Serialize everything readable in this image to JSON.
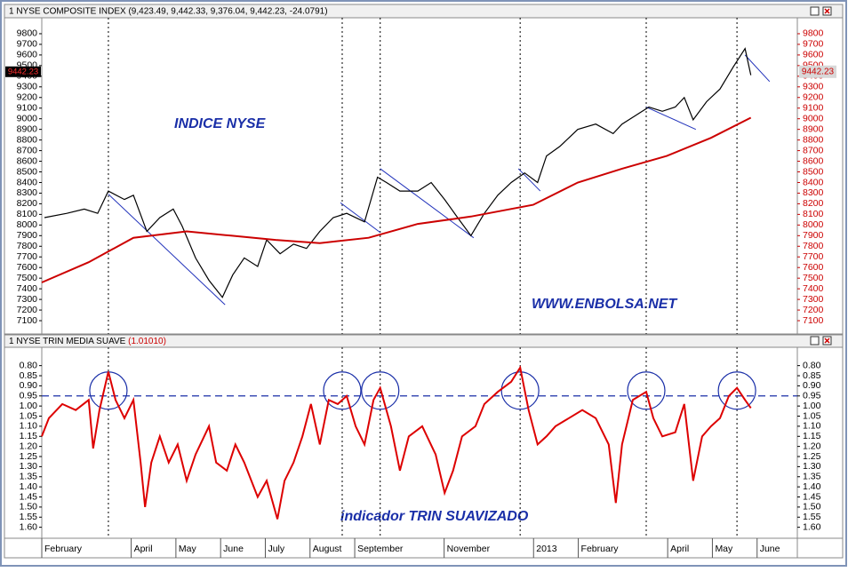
{
  "chart_data": [
    {
      "type": "line",
      "title": "1 NYSE COMPOSITE INDEX (9,423.49, 9,442.33, 9,376.04, 9,442.23, -24.0791)",
      "annotations": [
        "INDICE NYSE",
        "WWW.ENBOLSA.NET"
      ],
      "xlim": [
        0,
        16.9
      ],
      "ylim": [
        7000,
        9900
      ],
      "yticks": [
        7100,
        7200,
        7300,
        7400,
        7500,
        7600,
        7700,
        7800,
        7900,
        8000,
        8100,
        8200,
        8300,
        8400,
        8500,
        8600,
        8700,
        8800,
        8900,
        9000,
        9100,
        9200,
        9300,
        9400,
        9500,
        9600,
        9700,
        9800
      ],
      "last_value": 9442.23,
      "markers": [
        1.49,
        6.72,
        7.57,
        10.7,
        13.52,
        15.55
      ],
      "series": [
        {
          "color": "#000000",
          "x": [
            0.06,
            0.56,
            0.95,
            1.25,
            1.49,
            1.85,
            2.05,
            2.35,
            2.64,
            2.94,
            3.14,
            3.44,
            3.74,
            4.04,
            4.27,
            4.53,
            4.83,
            5.03,
            5.33,
            5.63,
            5.92,
            6.22,
            6.52,
            6.82,
            7.22,
            7.51,
            7.71,
            8.01,
            8.41,
            8.71,
            9.01,
            9.3,
            9.6,
            9.9,
            10.2,
            10.5,
            10.8,
            11.09,
            11.29,
            11.59,
            11.99,
            12.39,
            12.78,
            12.98,
            13.28,
            13.58,
            13.88,
            14.17,
            14.37,
            14.57,
            14.87,
            15.17,
            15.47,
            15.73,
            15.86
          ],
          "values": [
            8070,
            8110,
            8150,
            8110,
            8320,
            8240,
            8280,
            7940,
            8070,
            8150,
            7990,
            7690,
            7480,
            7320,
            7530,
            7690,
            7610,
            7860,
            7730,
            7820,
            7780,
            7940,
            8070,
            8110,
            8030,
            8450,
            8400,
            8320,
            8320,
            8400,
            8240,
            8070,
            7900,
            8110,
            8280,
            8400,
            8490,
            8400,
            8650,
            8740,
            8900,
            8950,
            8860,
            8950,
            9030,
            9110,
            9070,
            9110,
            9200,
            8990,
            9160,
            9280,
            9490,
            9660,
            9410
          ]
        },
        {
          "color": "#cc0000",
          "x": [
            0,
            1.05,
            2.05,
            3.24,
            4.23,
            5.23,
            6.22,
            7.31,
            8.41,
            9.6,
            10.99,
            11.99,
            12.98,
            13.98,
            14.97,
            15.86
          ],
          "values": [
            7460,
            7650,
            7880,
            7940,
            7900,
            7860,
            7830,
            7880,
            8010,
            8080,
            8190,
            8400,
            8530,
            8650,
            8820,
            9010
          ]
        }
      ],
      "trendlines": [
        {
          "x": [
            1.49,
            4.1
          ],
          "y": [
            8290,
            7250
          ]
        },
        {
          "x": [
            6.68,
            7.57
          ],
          "y": [
            8210,
            7930
          ]
        },
        {
          "x": [
            7.57,
            9.66
          ],
          "y": [
            8530,
            7880
          ]
        },
        {
          "x": [
            10.66,
            11.15
          ],
          "y": [
            8530,
            8320
          ]
        },
        {
          "x": [
            13.52,
            14.63
          ],
          "y": [
            9110,
            8900
          ]
        },
        {
          "x": [
            15.73,
            16.28
          ],
          "y": [
            9600,
            9350
          ]
        }
      ]
    },
    {
      "type": "line",
      "title": "1 NYSE TRIN MEDIA SUAVE",
      "title_value": "(1.01010)",
      "annotations": [
        "indicador TRIN SUAVIZADO"
      ],
      "xlim": [
        0,
        16.9
      ],
      "ylim": [
        1.65,
        0.74
      ],
      "yticks": [
        {
          "value": 0.8,
          "label": "0.80"
        },
        {
          "value": 0.85,
          "label": "0.85"
        },
        {
          "value": 0.9,
          "label": "0.90"
        },
        {
          "value": 0.95,
          "label": "0.95"
        },
        {
          "value": 1.0,
          "label": "1.00"
        },
        {
          "value": 1.05,
          "label": "1.05"
        },
        {
          "value": 1.1,
          "label": "1.10"
        },
        {
          "value": 1.15,
          "label": "1.15"
        },
        {
          "value": 1.2,
          "label": "1.20"
        },
        {
          "value": 1.25,
          "label": "1.25"
        },
        {
          "value": 1.3,
          "label": "1.30"
        },
        {
          "value": 1.35,
          "label": "1.35"
        },
        {
          "value": 1.4,
          "label": "1.40"
        },
        {
          "value": 1.45,
          "label": "1.45"
        },
        {
          "value": 1.5,
          "label": "1.50"
        },
        {
          "value": 1.55,
          "label": "1.55"
        },
        {
          "value": 1.6,
          "label": "1.60"
        }
      ],
      "xticks": [
        {
          "value": 0,
          "label": "February"
        },
        {
          "value": 2,
          "label": "April"
        },
        {
          "value": 3,
          "label": "May"
        },
        {
          "value": 4,
          "label": "June"
        },
        {
          "value": 5,
          "label": "July"
        },
        {
          "value": 6,
          "label": "August"
        },
        {
          "value": 7,
          "label": "September"
        },
        {
          "value": 9,
          "label": "November"
        },
        {
          "value": 11,
          "label": "2013"
        },
        {
          "value": 12,
          "label": "February"
        },
        {
          "value": 14,
          "label": "April"
        },
        {
          "value": 15,
          "label": "May"
        },
        {
          "value": 16,
          "label": "June"
        }
      ],
      "hline": 0.95,
      "series": [
        {
          "color": "#dd0000",
          "x": [
            0,
            0.16,
            0.46,
            0.76,
            1.05,
            1.15,
            1.29,
            1.49,
            1.65,
            1.85,
            2.05,
            2.21,
            2.31,
            2.45,
            2.64,
            2.84,
            3.04,
            3.24,
            3.44,
            3.74,
            3.9,
            4.14,
            4.33,
            4.53,
            4.83,
            5.03,
            5.27,
            5.43,
            5.63,
            5.83,
            6.02,
            6.22,
            6.42,
            6.62,
            6.82,
            7.02,
            7.22,
            7.42,
            7.57,
            7.81,
            8.01,
            8.21,
            8.51,
            8.81,
            9.01,
            9.2,
            9.4,
            9.7,
            9.9,
            10.2,
            10.5,
            10.7,
            10.89,
            11.09,
            11.29,
            11.49,
            11.79,
            12.09,
            12.39,
            12.68,
            12.84,
            12.98,
            13.22,
            13.52,
            13.68,
            13.88,
            14.17,
            14.37,
            14.57,
            14.77,
            14.97,
            15.17,
            15.37,
            15.55,
            15.73,
            15.86
          ],
          "values": [
            1.15,
            1.06,
            0.99,
            1.02,
            0.97,
            1.21,
            1.02,
            0.83,
            0.97,
            1.06,
            0.97,
            1.28,
            1.5,
            1.28,
            1.15,
            1.28,
            1.19,
            1.37,
            1.24,
            1.1,
            1.28,
            1.32,
            1.19,
            1.28,
            1.45,
            1.37,
            1.56,
            1.37,
            1.28,
            1.15,
            0.99,
            1.19,
            0.97,
            0.99,
            0.95,
            1.1,
            1.19,
            0.97,
            0.91,
            1.1,
            1.32,
            1.15,
            1.1,
            1.24,
            1.43,
            1.32,
            1.15,
            1.1,
            0.99,
            0.93,
            0.88,
            0.81,
            1.02,
            1.19,
            1.15,
            1.1,
            1.06,
            1.02,
            1.06,
            1.19,
            1.48,
            1.19,
            0.97,
            0.93,
            1.06,
            1.15,
            1.13,
            0.99,
            1.37,
            1.15,
            1.1,
            1.06,
            0.95,
            0.91,
            0.97,
            1.01
          ]
        }
      ]
    }
  ]
}
